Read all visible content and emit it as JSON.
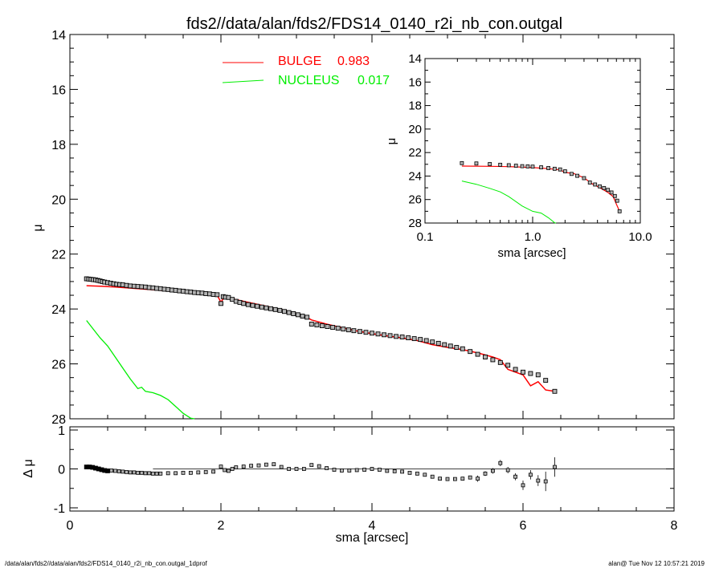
{
  "title": "fds2//data/alan/fds2/FDS14_0140_r2i_nb_con.outgal",
  "footer_left": "/data/alan/fds2//data/alan/fds2/FDS14_0140_r2i_nb_con.outgal_1dprof",
  "footer_right": "alan@  Tue Nov 12 10:57:21 2019",
  "colors": {
    "bulge": "#ff0000",
    "nucleus": "#00ee00",
    "data": "#000000",
    "marker_fill": "#b4b4b4"
  },
  "chart_data": [
    {
      "id": "main",
      "type": "line",
      "ylabel": "μ",
      "xlim": [
        0,
        8
      ],
      "ylim": [
        28,
        14
      ],
      "yticks": [
        "14",
        "16",
        "18",
        "20",
        "22",
        "24",
        "26",
        "28"
      ],
      "legend": [
        {
          "name": "BULGE",
          "value": "0.983",
          "color": "#ff0000"
        },
        {
          "name": "NUCLEUS",
          "value": "0.017",
          "color": "#00ee00"
        }
      ],
      "legend_position": "top-center",
      "data_points": {
        "x": [
          0.22,
          0.25,
          0.28,
          0.31,
          0.34,
          0.37,
          0.4,
          0.43,
          0.46,
          0.5,
          0.54,
          0.58,
          0.62,
          0.66,
          0.7,
          0.75,
          0.8,
          0.85,
          0.9,
          0.95,
          1.0,
          1.05,
          1.1,
          1.15,
          1.2,
          1.25,
          1.3,
          1.35,
          1.4,
          1.45,
          1.5,
          1.55,
          1.6,
          1.65,
          1.7,
          1.75,
          1.8,
          1.85,
          1.9,
          1.95,
          2.0,
          2.03,
          2.06,
          2.1,
          2.15,
          2.2,
          2.25,
          2.3,
          2.36,
          2.42,
          2.48,
          2.54,
          2.6,
          2.66,
          2.72,
          2.78,
          2.84,
          2.9,
          2.96,
          3.02,
          3.08,
          3.14,
          3.2,
          3.27,
          3.34,
          3.41,
          3.48,
          3.55,
          3.62,
          3.69,
          3.76,
          3.84,
          3.92,
          4.0,
          4.08,
          4.16,
          4.24,
          4.32,
          4.4,
          4.48,
          4.56,
          4.64,
          4.72,
          4.8,
          4.88,
          4.96,
          5.04,
          5.12,
          5.2,
          5.3,
          5.4,
          5.5,
          5.6,
          5.7,
          5.8,
          5.9,
          6.0,
          6.1,
          6.2,
          6.3,
          6.42
        ],
        "y": [
          22.9,
          22.91,
          22.92,
          22.93,
          22.94,
          22.96,
          22.98,
          23.0,
          23.02,
          23.04,
          23.06,
          23.08,
          23.1,
          23.11,
          23.12,
          23.14,
          23.16,
          23.17,
          23.18,
          23.19,
          23.2,
          23.22,
          23.23,
          23.25,
          23.26,
          23.28,
          23.29,
          23.31,
          23.32,
          23.34,
          23.35,
          23.37,
          23.38,
          23.4,
          23.41,
          23.42,
          23.44,
          23.45,
          23.47,
          23.48,
          23.8,
          23.55,
          23.57,
          23.58,
          23.65,
          23.72,
          23.76,
          23.8,
          23.84,
          23.87,
          23.9,
          23.93,
          23.96,
          23.99,
          24.02,
          24.05,
          24.09,
          24.13,
          24.17,
          24.21,
          24.26,
          24.3,
          24.55,
          24.58,
          24.61,
          24.64,
          24.67,
          24.7,
          24.73,
          24.76,
          24.79,
          24.82,
          24.85,
          24.88,
          24.91,
          24.94,
          24.97,
          25.0,
          25.02,
          25.05,
          25.08,
          25.11,
          25.15,
          25.2,
          25.25,
          25.3,
          25.35,
          25.4,
          25.45,
          25.55,
          25.65,
          25.75,
          25.85,
          25.95,
          26.05,
          26.2,
          26.3,
          26.35,
          26.4,
          26.6,
          27.0
        ]
      },
      "bulge_model": {
        "x": [
          0.22,
          0.4,
          0.6,
          0.8,
          1.0,
          1.2,
          1.4,
          1.6,
          1.8,
          1.95,
          2.0,
          2.05,
          2.1,
          2.2,
          2.4,
          2.6,
          2.8,
          3.0,
          3.1,
          3.2,
          3.4,
          3.6,
          3.8,
          4.0,
          4.2,
          4.4,
          4.6,
          4.8,
          5.0,
          5.2,
          5.4,
          5.6,
          5.7,
          5.8,
          6.0,
          6.1,
          6.2,
          6.3,
          6.42
        ],
        "y": [
          23.15,
          23.17,
          23.2,
          23.24,
          23.28,
          23.32,
          23.37,
          23.42,
          23.47,
          23.5,
          23.75,
          23.55,
          23.6,
          23.66,
          23.78,
          23.9,
          24.02,
          24.15,
          24.25,
          24.4,
          24.55,
          24.68,
          24.8,
          24.9,
          24.98,
          25.05,
          25.15,
          25.3,
          25.4,
          25.48,
          25.6,
          25.75,
          25.85,
          26.2,
          26.4,
          26.8,
          26.65,
          26.95,
          27.0
        ]
      },
      "nucleus_model": {
        "x": [
          0.22,
          0.3,
          0.4,
          0.5,
          0.6,
          0.7,
          0.8,
          0.9,
          0.95,
          1.0,
          1.1,
          1.2,
          1.3,
          1.4,
          1.5,
          1.6,
          1.65
        ],
        "y": [
          24.42,
          24.7,
          25.05,
          25.35,
          25.75,
          26.15,
          26.55,
          26.9,
          26.85,
          27.0,
          27.05,
          27.15,
          27.3,
          27.55,
          27.8,
          27.98,
          28.05
        ]
      }
    },
    {
      "id": "inset",
      "type": "line",
      "xscale": "log",
      "xlabel": "sma [arcsec]",
      "ylabel": "μ",
      "xlim": [
        0.1,
        10.0
      ],
      "ylim": [
        28,
        14
      ],
      "xticks": [
        0.1,
        1.0,
        10.0
      ],
      "xtick_labels": [
        "0.1",
        "1.0",
        "10.0"
      ],
      "yticks": [
        "14",
        "16",
        "18",
        "20",
        "22",
        "24",
        "26",
        "28"
      ],
      "data_points": {
        "x": [
          0.22,
          0.3,
          0.4,
          0.5,
          0.6,
          0.7,
          0.8,
          0.9,
          1.0,
          1.2,
          1.4,
          1.6,
          1.8,
          2.0,
          2.3,
          2.6,
          3.0,
          3.4,
          3.8,
          4.2,
          4.6,
          5.0,
          5.4,
          5.8,
          6.1,
          6.42
        ],
        "y": [
          22.9,
          22.93,
          22.98,
          23.04,
          23.08,
          23.12,
          23.16,
          23.18,
          23.2,
          23.26,
          23.32,
          23.38,
          23.44,
          23.6,
          23.82,
          23.98,
          24.18,
          24.55,
          24.72,
          24.88,
          25.02,
          25.18,
          25.4,
          25.7,
          26.1,
          27.0
        ]
      },
      "bulge_model": {
        "x": [
          0.22,
          0.4,
          0.6,
          0.8,
          1.0,
          1.4,
          1.8,
          2.0,
          2.4,
          3.0,
          3.6,
          4.2,
          5.0,
          5.6,
          6.0,
          6.42
        ],
        "y": [
          23.15,
          23.17,
          23.2,
          23.24,
          23.28,
          23.37,
          23.47,
          23.7,
          23.78,
          24.15,
          24.68,
          24.98,
          25.4,
          25.75,
          26.4,
          27.0
        ]
      },
      "nucleus_model": {
        "x": [
          0.22,
          0.3,
          0.4,
          0.5,
          0.6,
          0.8,
          1.0,
          1.2,
          1.4,
          1.6,
          1.65
        ],
        "y": [
          24.42,
          24.7,
          25.05,
          25.35,
          25.75,
          26.55,
          27.0,
          27.15,
          27.55,
          27.98,
          28.05
        ]
      }
    },
    {
      "id": "residuals",
      "type": "scatter",
      "xlabel": "sma [arcsec]",
      "ylabel": "Δ μ",
      "xlim": [
        0,
        8
      ],
      "ylim": [
        -1,
        1
      ],
      "xticks": [
        0,
        2,
        4,
        6,
        8
      ],
      "xtick_labels": [
        "0",
        "2",
        "4",
        "6",
        "8"
      ],
      "yticks": [
        "1",
        "0",
        "-1"
      ],
      "ytick_values": [
        1,
        0,
        -1
      ],
      "zero_line": {
        "x_start": 1.1,
        "x_end": 8.0,
        "value": 0
      },
      "data_points": {
        "x": [
          0.22,
          0.26,
          0.3,
          0.34,
          0.38,
          0.42,
          0.46,
          0.5,
          0.55,
          0.6,
          0.65,
          0.7,
          0.75,
          0.8,
          0.85,
          0.9,
          0.95,
          1.0,
          1.05,
          1.1,
          1.15,
          1.2,
          1.3,
          1.4,
          1.5,
          1.6,
          1.7,
          1.8,
          1.9,
          2.0,
          2.05,
          2.1,
          2.15,
          2.2,
          2.3,
          2.4,
          2.5,
          2.6,
          2.7,
          2.8,
          2.9,
          3.0,
          3.1,
          3.2,
          3.3,
          3.4,
          3.5,
          3.6,
          3.7,
          3.8,
          3.9,
          4.0,
          4.1,
          4.2,
          4.3,
          4.4,
          4.5,
          4.6,
          4.7,
          4.8,
          4.9,
          5.0,
          5.1,
          5.2,
          5.3,
          5.4,
          5.5,
          5.6,
          5.7,
          5.8,
          5.9,
          6.0,
          6.1,
          6.2,
          6.3,
          6.42
        ],
        "y": [
          0.05,
          0.05,
          0.04,
          0.02,
          0.0,
          -0.02,
          -0.04,
          -0.05,
          -0.04,
          -0.05,
          -0.06,
          -0.07,
          -0.08,
          -0.09,
          -0.09,
          -0.1,
          -0.1,
          -0.11,
          -0.11,
          -0.12,
          -0.12,
          -0.12,
          -0.11,
          -0.11,
          -0.1,
          -0.1,
          -0.09,
          -0.08,
          -0.07,
          0.06,
          -0.03,
          -0.05,
          0.0,
          0.04,
          0.06,
          0.08,
          0.09,
          0.11,
          0.12,
          0.05,
          0.0,
          0.0,
          0.0,
          0.1,
          0.07,
          0.02,
          -0.02,
          -0.04,
          -0.04,
          -0.03,
          -0.02,
          0.0,
          -0.02,
          -0.05,
          -0.06,
          -0.07,
          -0.1,
          -0.12,
          -0.15,
          -0.2,
          -0.25,
          -0.26,
          -0.26,
          -0.25,
          -0.22,
          -0.25,
          -0.12,
          -0.05,
          0.15,
          -0.03,
          -0.2,
          -0.42,
          -0.15,
          -0.3,
          -0.32,
          0.05
        ],
        "yerr": [
          0,
          0,
          0,
          0,
          0,
          0,
          0,
          0,
          0,
          0,
          0,
          0,
          0,
          0,
          0,
          0,
          0,
          0,
          0,
          0,
          0,
          0,
          0,
          0,
          0,
          0,
          0,
          0,
          0,
          0,
          0,
          0,
          0,
          0,
          0,
          0,
          0,
          0,
          0,
          0,
          0,
          0,
          0,
          0,
          0,
          0,
          0,
          0,
          0,
          0,
          0,
          0,
          0,
          0,
          0,
          0,
          0,
          0,
          0,
          0,
          0,
          0,
          0,
          0,
          0,
          0.08,
          0.06,
          0.07,
          0.08,
          0.08,
          0.09,
          0.12,
          0.12,
          0.14,
          0.25,
          0.25
        ]
      }
    }
  ]
}
